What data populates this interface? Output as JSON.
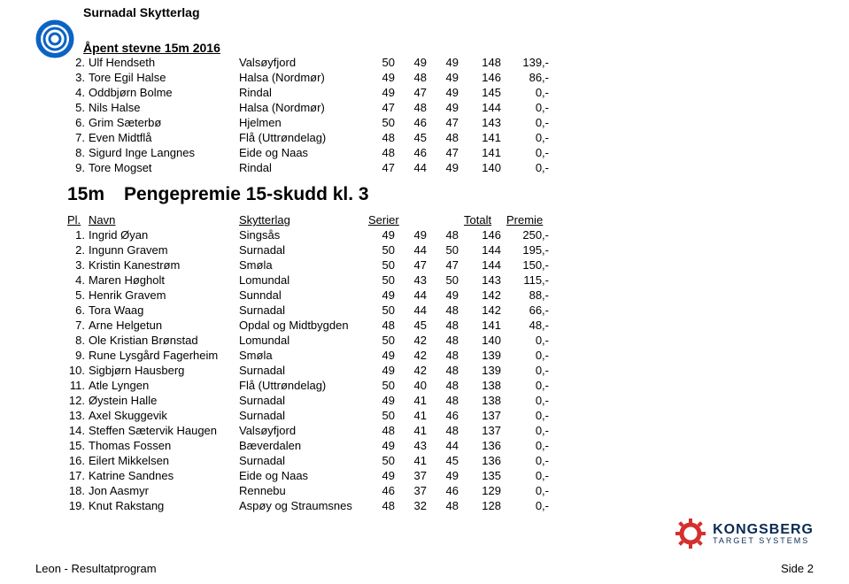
{
  "org": "Surnadal Skytterlag",
  "event": "Åpent stevne 15m 2016",
  "table1": {
    "rows": [
      {
        "pl": "2.",
        "name": "Ulf Hendseth",
        "club": "Valsøyfjord",
        "s": [
          "50",
          "49",
          "49"
        ],
        "tot": "148",
        "prem": "139,-"
      },
      {
        "pl": "3.",
        "name": "Tore Egil Halse",
        "club": "Halsa (Nordmør)",
        "s": [
          "49",
          "48",
          "49"
        ],
        "tot": "146",
        "prem": "86,-"
      },
      {
        "pl": "4.",
        "name": "Oddbjørn Bolme",
        "club": "Rindal",
        "s": [
          "49",
          "47",
          "49"
        ],
        "tot": "145",
        "prem": "0,-"
      },
      {
        "pl": "5.",
        "name": "Nils Halse",
        "club": "Halsa (Nordmør)",
        "s": [
          "47",
          "48",
          "49"
        ],
        "tot": "144",
        "prem": "0,-"
      },
      {
        "pl": "6.",
        "name": "Grim Sæterbø",
        "club": "Hjelmen",
        "s": [
          "50",
          "46",
          "47"
        ],
        "tot": "143",
        "prem": "0,-"
      },
      {
        "pl": "7.",
        "name": "Even Midtflå",
        "club": "Flå (Uttrøndelag)",
        "s": [
          "48",
          "45",
          "48"
        ],
        "tot": "141",
        "prem": "0,-"
      },
      {
        "pl": "8.",
        "name": "Sigurd Inge Langnes",
        "club": "Eide og Naas",
        "s": [
          "48",
          "46",
          "47"
        ],
        "tot": "141",
        "prem": "0,-"
      },
      {
        "pl": "9.",
        "name": "Tore Mogset",
        "club": "Rindal",
        "s": [
          "47",
          "44",
          "49"
        ],
        "tot": "140",
        "prem": "0,-"
      }
    ]
  },
  "section": {
    "dist": "15m",
    "title": "Pengepremie 15-skudd kl. 3"
  },
  "header": {
    "pl": "Pl.",
    "name": "Navn",
    "club": "Skytterlag",
    "ser": "Serier",
    "tot": "Totalt",
    "prem": "Premie"
  },
  "table2": {
    "rows": [
      {
        "pl": "1.",
        "name": "Ingrid Øyan",
        "club": "Singsås",
        "s": [
          "49",
          "49",
          "48"
        ],
        "tot": "146",
        "prem": "250,-"
      },
      {
        "pl": "2.",
        "name": "Ingunn Gravem",
        "club": "Surnadal",
        "s": [
          "50",
          "44",
          "50"
        ],
        "tot": "144",
        "prem": "195,-"
      },
      {
        "pl": "3.",
        "name": "Kristin Kanestrøm",
        "club": "Smøla",
        "s": [
          "50",
          "47",
          "47"
        ],
        "tot": "144",
        "prem": "150,-"
      },
      {
        "pl": "4.",
        "name": "Maren Høgholt",
        "club": "Lomundal",
        "s": [
          "50",
          "43",
          "50"
        ],
        "tot": "143",
        "prem": "115,-"
      },
      {
        "pl": "5.",
        "name": "Henrik Gravem",
        "club": "Sunndal",
        "s": [
          "49",
          "44",
          "49"
        ],
        "tot": "142",
        "prem": "88,-"
      },
      {
        "pl": "6.",
        "name": "Tora Waag",
        "club": "Surnadal",
        "s": [
          "50",
          "44",
          "48"
        ],
        "tot": "142",
        "prem": "66,-"
      },
      {
        "pl": "7.",
        "name": "Arne Helgetun",
        "club": "Opdal og Midtbygden",
        "s": [
          "48",
          "45",
          "48"
        ],
        "tot": "141",
        "prem": "48,-"
      },
      {
        "pl": "8.",
        "name": "Ole Kristian Brønstad",
        "club": "Lomundal",
        "s": [
          "50",
          "42",
          "48"
        ],
        "tot": "140",
        "prem": "0,-"
      },
      {
        "pl": "9.",
        "name": "Rune Lysgård Fagerheim",
        "club": "Smøla",
        "s": [
          "49",
          "42",
          "48"
        ],
        "tot": "139",
        "prem": "0,-"
      },
      {
        "pl": "10.",
        "name": "Sigbjørn Hausberg",
        "club": "Surnadal",
        "s": [
          "49",
          "42",
          "48"
        ],
        "tot": "139",
        "prem": "0,-"
      },
      {
        "pl": "11.",
        "name": "Atle Lyngen",
        "club": "Flå (Uttrøndelag)",
        "s": [
          "50",
          "40",
          "48"
        ],
        "tot": "138",
        "prem": "0,-"
      },
      {
        "pl": "12.",
        "name": "Øystein Halle",
        "club": "Surnadal",
        "s": [
          "49",
          "41",
          "48"
        ],
        "tot": "138",
        "prem": "0,-"
      },
      {
        "pl": "13.",
        "name": "Axel Skuggevik",
        "club": "Surnadal",
        "s": [
          "50",
          "41",
          "46"
        ],
        "tot": "137",
        "prem": "0,-"
      },
      {
        "pl": "14.",
        "name": "Steffen Sætervik Haugen",
        "club": "Valsøyfjord",
        "s": [
          "48",
          "41",
          "48"
        ],
        "tot": "137",
        "prem": "0,-"
      },
      {
        "pl": "15.",
        "name": "Thomas Fossen",
        "club": "Bæverdalen",
        "s": [
          "49",
          "43",
          "44"
        ],
        "tot": "136",
        "prem": "0,-"
      },
      {
        "pl": "16.",
        "name": "Eilert Mikkelsen",
        "club": "Surnadal",
        "s": [
          "50",
          "41",
          "45"
        ],
        "tot": "136",
        "prem": "0,-"
      },
      {
        "pl": "17.",
        "name": "Katrine Sandnes",
        "club": "Eide og Naas",
        "s": [
          "49",
          "37",
          "49"
        ],
        "tot": "135",
        "prem": "0,-"
      },
      {
        "pl": "18.",
        "name": "Jon Aasmyr",
        "club": "Rennebu",
        "s": [
          "46",
          "37",
          "46"
        ],
        "tot": "129",
        "prem": "0,-"
      },
      {
        "pl": "19.",
        "name": "Knut Rakstang",
        "club": "Aspøy og Straumsnes",
        "s": [
          "48",
          "32",
          "48"
        ],
        "tot": "128",
        "prem": "0,-"
      }
    ]
  },
  "brand": {
    "name": "KONGSBERG",
    "sub": "TARGET SYSTEMS",
    "color": "#0a2a52",
    "gear": "#d3302f"
  },
  "footer": {
    "left": "Leon - Resultatprogram",
    "right": "Side 2"
  }
}
